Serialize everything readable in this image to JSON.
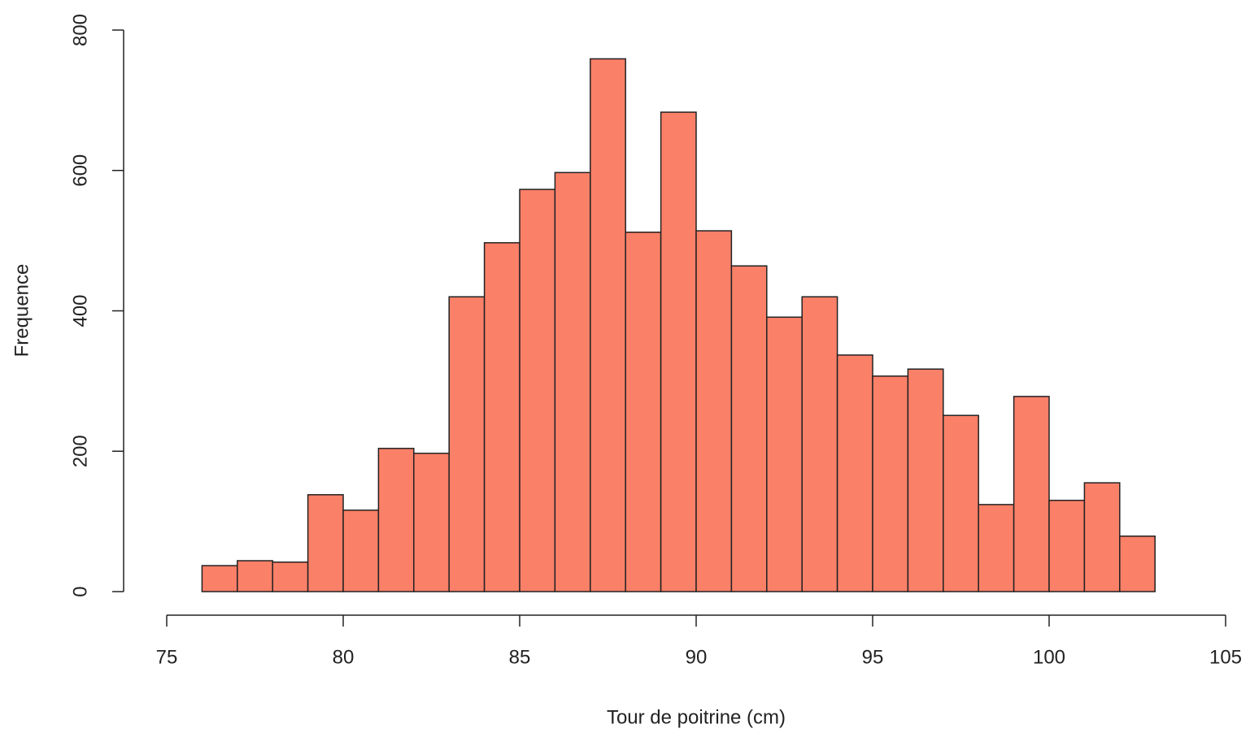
{
  "chart_data": {
    "type": "histogram",
    "x_label": "Tour de poitrine (cm)",
    "y_label": "Frequence",
    "bins": [
      76,
      77,
      78,
      79,
      80,
      81,
      82,
      83,
      84,
      85,
      86,
      87,
      88,
      89,
      90,
      91,
      92,
      93,
      94,
      95,
      96,
      97,
      98,
      99,
      100,
      101,
      102,
      103
    ],
    "counts": [
      37,
      44,
      42,
      138,
      116,
      204,
      197,
      420,
      497,
      573,
      597,
      759,
      512,
      683,
      514,
      464,
      391,
      420,
      337,
      307,
      317,
      251,
      124,
      278,
      130,
      155,
      79
    ],
    "color": "#fa8068",
    "xlim": [
      75,
      105
    ],
    "xticks": [
      75,
      80,
      85,
      90,
      95,
      100,
      105
    ],
    "ylim": [
      0,
      800
    ],
    "yticks": [
      0,
      200,
      400,
      600,
      800
    ]
  }
}
